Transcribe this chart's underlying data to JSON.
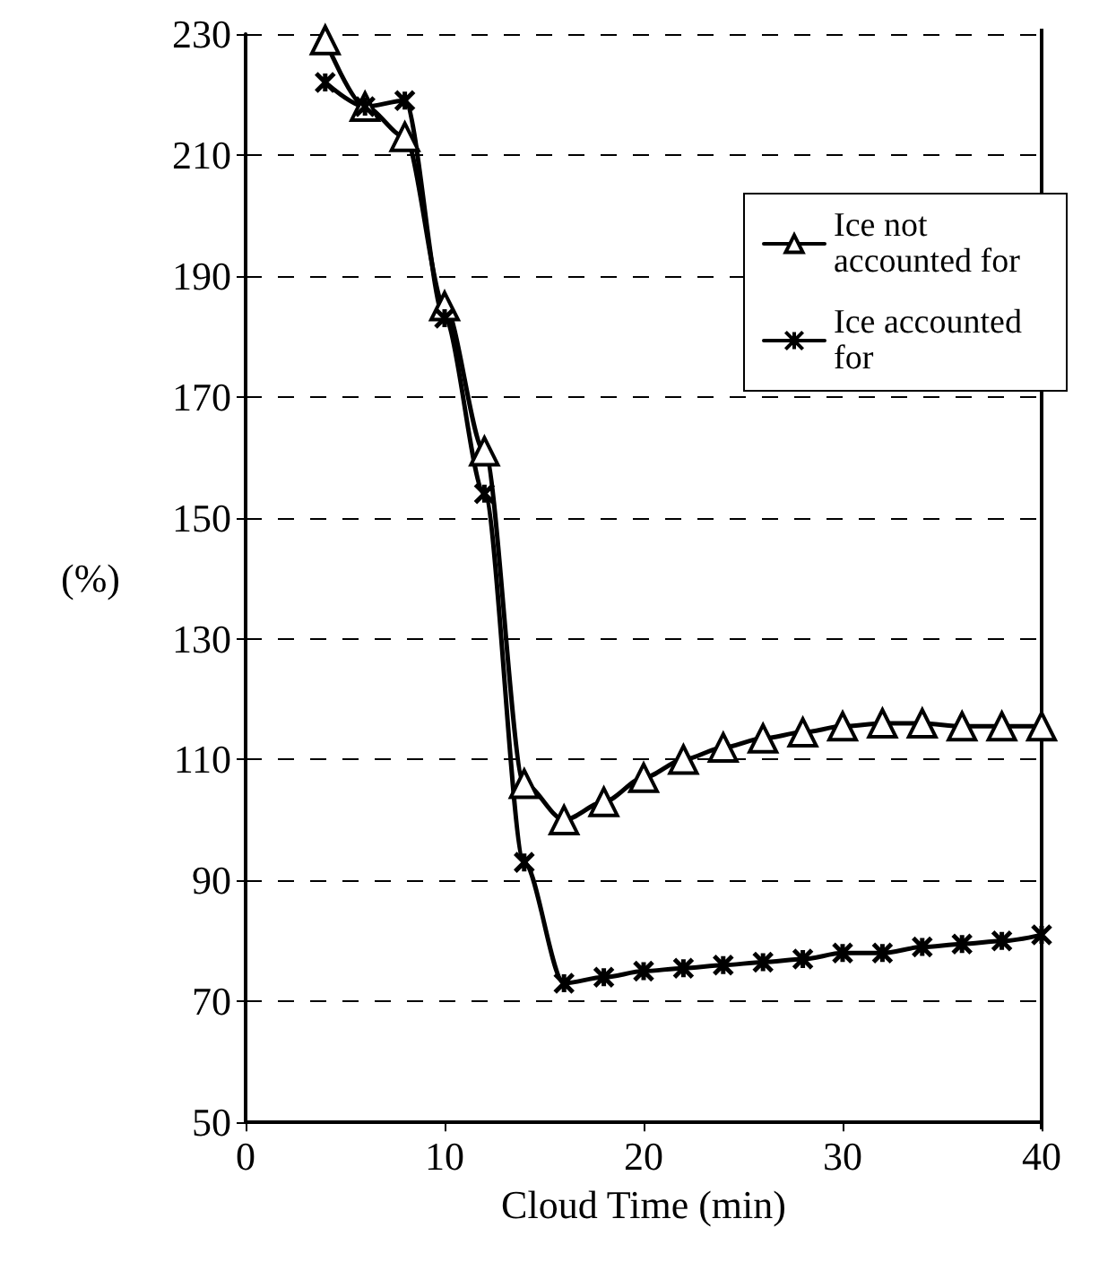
{
  "chart_data": {
    "type": "line",
    "xlabel": "Cloud Time (min)",
    "ylabel": "(%)",
    "x": [
      4,
      6,
      8,
      10,
      12,
      14,
      16,
      18,
      20,
      22,
      24,
      26,
      28,
      30,
      32,
      34,
      36,
      38,
      40
    ],
    "series": [
      {
        "name": "Ice not accounted for",
        "color": "#000000",
        "marker": "triangle",
        "values": [
          229,
          218,
          213,
          185,
          161,
          106,
          100,
          103,
          107,
          110,
          112,
          113.5,
          114.5,
          115.5,
          116,
          116,
          115.5,
          115.5,
          115.5
        ]
      },
      {
        "name": "Ice accounted for",
        "color": "#000000",
        "marker": "cross",
        "values": [
          222,
          218,
          219,
          183,
          154,
          93,
          73,
          74,
          75,
          75.5,
          76,
          76.5,
          77,
          78,
          78,
          79,
          79.5,
          80,
          81
        ]
      }
    ],
    "xlim": [
      0,
      40
    ],
    "xticks": [
      0,
      10,
      20,
      30,
      40
    ],
    "ylim": [
      50,
      230
    ],
    "yticks": [
      50,
      70,
      90,
      110,
      130,
      150,
      170,
      190,
      210,
      230
    ],
    "grid": "y",
    "legend": "top right",
    "line_style": "solid"
  }
}
